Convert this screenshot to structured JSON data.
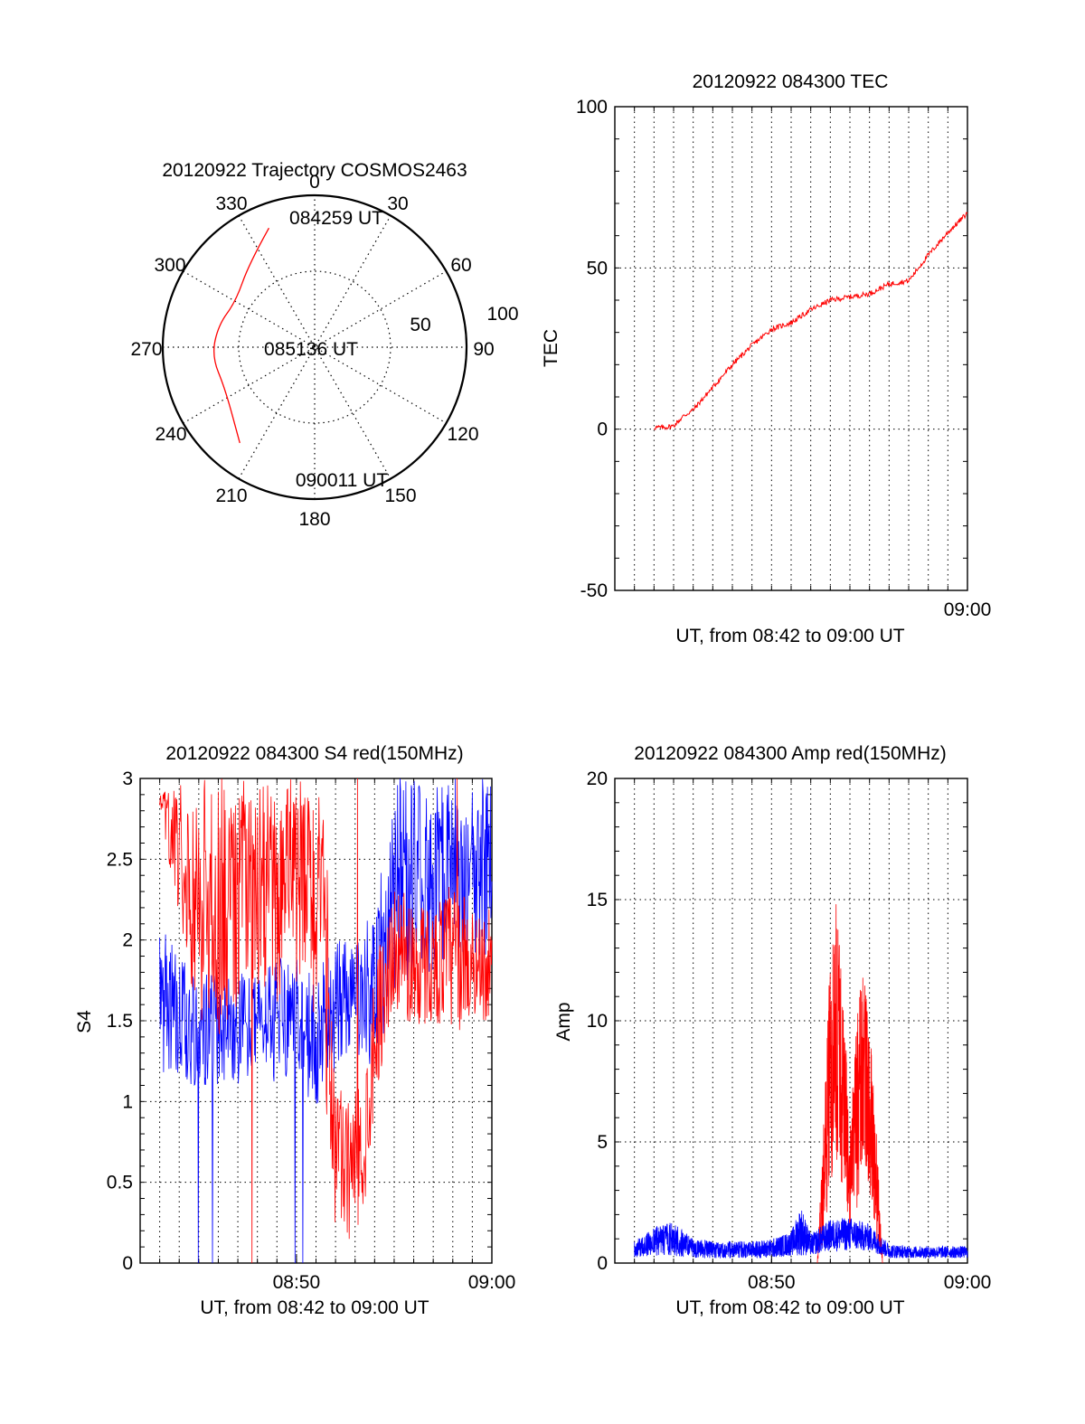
{
  "figure": {
    "panels": [
      "polar",
      "tec",
      "s4",
      "amp"
    ]
  },
  "chart_data": [
    {
      "type": "polar",
      "title": "20120922 Trajectory COSMOS2463",
      "angle_labels": [
        "0",
        "30",
        "60",
        "90",
        "120",
        "150",
        "180",
        "210",
        "240",
        "270",
        "300",
        "330"
      ],
      "radial_labels": [
        "50",
        "100"
      ],
      "track_color": "#ff0000",
      "trajectory": [
        {
          "az": 339,
          "r": 84,
          "label": "084259 UT"
        },
        {
          "az": 322,
          "r": 70
        },
        {
          "az": 300,
          "r": 60
        },
        {
          "az": 283,
          "r": 65,
          "label": "085136 UT"
        },
        {
          "az": 265,
          "r": 68
        },
        {
          "az": 245,
          "r": 65
        },
        {
          "az": 218,
          "r": 80,
          "label": "090011 UT"
        }
      ]
    },
    {
      "type": "line",
      "title": "20120922 084300 TEC",
      "ylabel": "TEC",
      "xlabel": "UT, from 08:42 to 09:00 UT",
      "x_tick_labels": [
        "09:00"
      ],
      "y_tick_labels": [
        "-50",
        "0",
        "50",
        "100"
      ],
      "ylim": [
        -50,
        100
      ],
      "series": [
        {
          "color": "#ff0000",
          "points": [
            [
              "08:44:00",
              0.5
            ],
            [
              "08:44:30",
              0.5
            ],
            [
              "08:45:00",
              1
            ],
            [
              "08:45:30",
              4
            ],
            [
              "08:46:00",
              6
            ],
            [
              "08:47:00",
              13
            ],
            [
              "08:48:00",
              20
            ],
            [
              "08:49:00",
              26
            ],
            [
              "08:50:00",
              31
            ],
            [
              "08:51:00",
              33
            ],
            [
              "08:52:00",
              37
            ],
            [
              "08:53:00",
              40
            ],
            [
              "08:54:00",
              41
            ],
            [
              "08:55:00",
              42
            ],
            [
              "08:56:00",
              45
            ],
            [
              "08:57:00",
              46
            ],
            [
              "08:58:00",
              54
            ],
            [
              "08:59:00",
              61
            ],
            [
              "09:00:00",
              67
            ]
          ]
        }
      ]
    },
    {
      "type": "line",
      "title": "20120922 084300 S4 red(150MHz)",
      "ylabel": "S4",
      "xlabel": "UT, from 08:42 to 09:00 UT",
      "x_tick_labels": [
        "08:50",
        "09:00"
      ],
      "y_tick_labels": [
        "0",
        "0.5",
        "1",
        "1.5",
        "2",
        "2.5",
        "3"
      ],
      "ylim": [
        0,
        3
      ],
      "series": [
        {
          "color": "#ff0000",
          "envelope": [
            [
              "08:43:00",
              2.8,
              2.9
            ],
            [
              "08:44:00",
              2.1,
              3.0
            ],
            [
              "08:45:00",
              1.5,
              3.0
            ],
            [
              "08:46:00",
              1.4,
              3.0
            ],
            [
              "08:47:00",
              1.6,
              3.0
            ],
            [
              "08:48:00",
              1.7,
              3.0
            ],
            [
              "08:49:00",
              1.6,
              3.0
            ],
            [
              "08:50:00",
              1.7,
              3.0
            ],
            [
              "08:51:00",
              1.5,
              3.0
            ],
            [
              "08:51:30",
              1.0,
              2.7
            ],
            [
              "08:52:00",
              0.15,
              1.2
            ],
            [
              "08:52:30",
              0.12,
              1.0
            ],
            [
              "08:53:00",
              0.15,
              1.1
            ],
            [
              "08:53:30",
              0.3,
              1.2
            ],
            [
              "08:54:00",
              1.0,
              1.9
            ],
            [
              "08:55:00",
              1.6,
              2.3
            ],
            [
              "08:56:00",
              1.4,
              2.3
            ],
            [
              "08:57:00",
              1.5,
              2.2
            ],
            [
              "08:58:00",
              1.4,
              2.4
            ],
            [
              "08:59:00",
              1.5,
              2.2
            ],
            [
              "09:00:00",
              1.5,
              2.2
            ]
          ]
        },
        {
          "color": "#0000ff",
          "envelope": [
            [
              "08:43:00",
              1.2,
              2.2
            ],
            [
              "08:44:00",
              1.1,
              1.9
            ],
            [
              "08:45:00",
              1.1,
              1.8
            ],
            [
              "08:46:00",
              1.1,
              1.8
            ],
            [
              "08:47:00",
              1.1,
              1.8
            ],
            [
              "08:48:00",
              1.2,
              1.8
            ],
            [
              "08:49:00",
              1.1,
              1.9
            ],
            [
              "08:50:00",
              1.2,
              1.9
            ],
            [
              "08:51:00",
              0.9,
              1.8
            ],
            [
              "08:52:00",
              1.2,
              2.0
            ],
            [
              "08:53:00",
              1.3,
              2.0
            ],
            [
              "08:54:00",
              1.2,
              2.2
            ],
            [
              "08:55:00",
              1.6,
              3.0
            ],
            [
              "08:56:00",
              1.8,
              3.0
            ],
            [
              "08:57:00",
              1.8,
              3.0
            ],
            [
              "08:58:00",
              1.9,
              3.0
            ],
            [
              "08:59:00",
              1.9,
              3.0
            ],
            [
              "09:00:00",
              1.9,
              3.0
            ]
          ]
        }
      ]
    },
    {
      "type": "line",
      "title": "20120922 084300 Amp red(150MHz)",
      "ylabel": "Amp",
      "xlabel": "UT, from 08:42 to 09:00 UT",
      "x_tick_labels": [
        "08:50",
        "09:00"
      ],
      "y_tick_labels": [
        "0",
        "5",
        "10",
        "15",
        "20"
      ],
      "ylim": [
        0,
        20
      ],
      "series": [
        {
          "color": "#ff0000",
          "envelope": [
            [
              "08:52:20",
              0,
              0
            ],
            [
              "08:52:40",
              1,
              6
            ],
            [
              "08:53:00",
              3,
              13
            ],
            [
              "08:53:20",
              4,
              15.4
            ],
            [
              "08:53:40",
              3,
              11
            ],
            [
              "08:54:00",
              1,
              6
            ],
            [
              "08:54:20",
              2,
              10
            ],
            [
              "08:54:40",
              4,
              12.3
            ],
            [
              "08:55:00",
              3,
              10
            ],
            [
              "08:55:20",
              1,
              6
            ],
            [
              "08:55:40",
              0,
              0
            ]
          ]
        },
        {
          "color": "#0000ff",
          "envelope": [
            [
              "08:43:00",
              0.2,
              0.9
            ],
            [
              "08:44:00",
              0.3,
              1.5
            ],
            [
              "08:45:00",
              0.3,
              1.7
            ],
            [
              "08:46:00",
              0.2,
              1.0
            ],
            [
              "08:47:00",
              0.2,
              0.9
            ],
            [
              "08:48:00",
              0.2,
              0.9
            ],
            [
              "08:49:00",
              0.2,
              0.9
            ],
            [
              "08:50:00",
              0.2,
              1.0
            ],
            [
              "08:51:00",
              0.3,
              1.3
            ],
            [
              "08:51:30",
              0.3,
              2.4
            ],
            [
              "08:52:00",
              0.3,
              1.2
            ],
            [
              "08:53:00",
              0.5,
              1.8
            ],
            [
              "08:54:00",
              0.5,
              1.9
            ],
            [
              "08:55:00",
              0.5,
              1.6
            ],
            [
              "08:56:00",
              0.2,
              0.8
            ],
            [
              "08:57:00",
              0.2,
              0.7
            ],
            [
              "08:58:00",
              0.2,
              0.7
            ],
            [
              "08:59:00",
              0.2,
              0.7
            ],
            [
              "09:00:00",
              0.2,
              0.7
            ]
          ]
        }
      ]
    }
  ]
}
